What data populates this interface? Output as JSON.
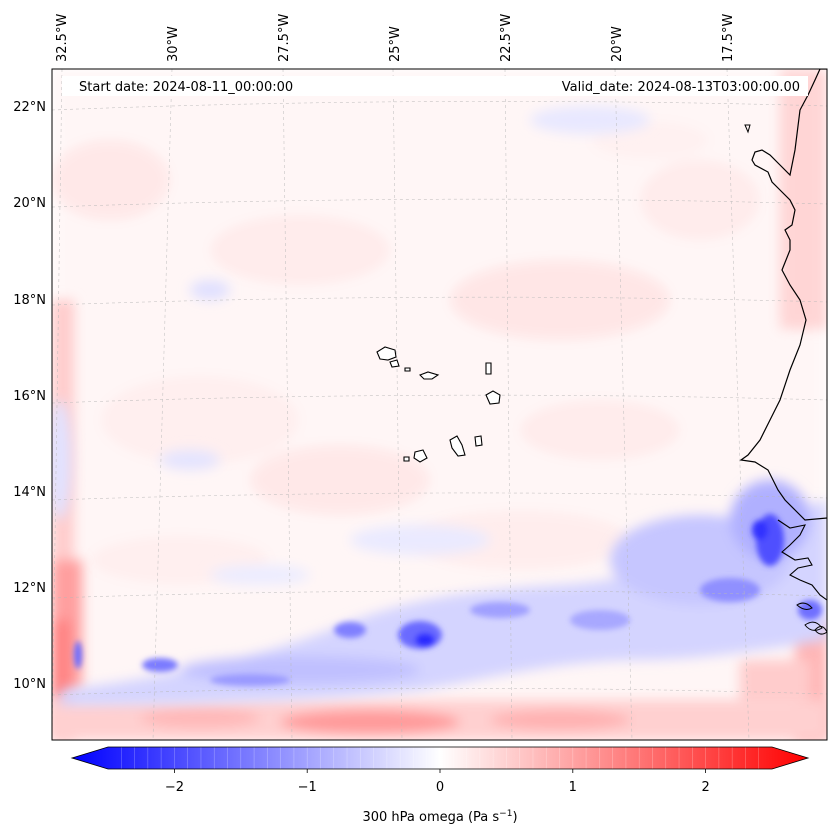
{
  "map": {
    "header": {
      "start_date": "Start date: 2024-08-11_00:00:00",
      "valid_date": "Valid_date: 2024-08-13T03:00:00.00"
    },
    "lon_labels": [
      "32.5°W",
      "30°W",
      "27.5°W",
      "25°W",
      "22.5°W",
      "20°W",
      "17.5°W"
    ],
    "lat_labels": [
      "22°N",
      "20°N",
      "18°N",
      "16°N",
      "14°N",
      "12°N",
      "10°N"
    ],
    "extent": {
      "lon_min": -33.0,
      "lon_max": -15.0,
      "lat_min": 8.8,
      "lat_max": 22.8
    },
    "field": "300 hPa omega",
    "colors": {
      "negative": "#0000ff",
      "zero": "#ffffff",
      "positive": "#ff0000",
      "coast": "#000000"
    }
  },
  "colorbar": {
    "ticks": [
      "−2",
      "−1",
      "0",
      "1",
      "2"
    ],
    "tick_values": [
      -2,
      -1,
      0,
      1,
      2
    ],
    "range": [
      -2.5,
      2.5
    ],
    "label_main": "300 hPa omega (Pa s",
    "label_sup": "−1",
    "label_end": ")"
  }
}
